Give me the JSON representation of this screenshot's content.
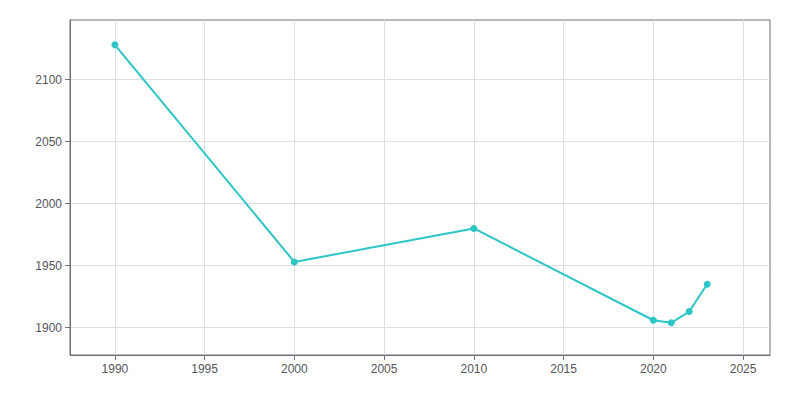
{
  "chart_data": {
    "type": "line",
    "x": [
      1990,
      2000,
      2010,
      2020,
      2021,
      2022,
      2023
    ],
    "values": [
      2128,
      1953,
      1980,
      1906,
      1904,
      1913,
      1935
    ],
    "color": "#2dc5c5",
    "marker": "circle",
    "xlim": [
      1987.5,
      2026.5
    ],
    "ylim": [
      1878,
      2148
    ],
    "xticks": [
      1990,
      1995,
      2000,
      2005,
      2010,
      2015,
      2020,
      2025
    ],
    "yticks": [
      1900,
      1950,
      2000,
      2050,
      2100
    ],
    "grid": true
  }
}
